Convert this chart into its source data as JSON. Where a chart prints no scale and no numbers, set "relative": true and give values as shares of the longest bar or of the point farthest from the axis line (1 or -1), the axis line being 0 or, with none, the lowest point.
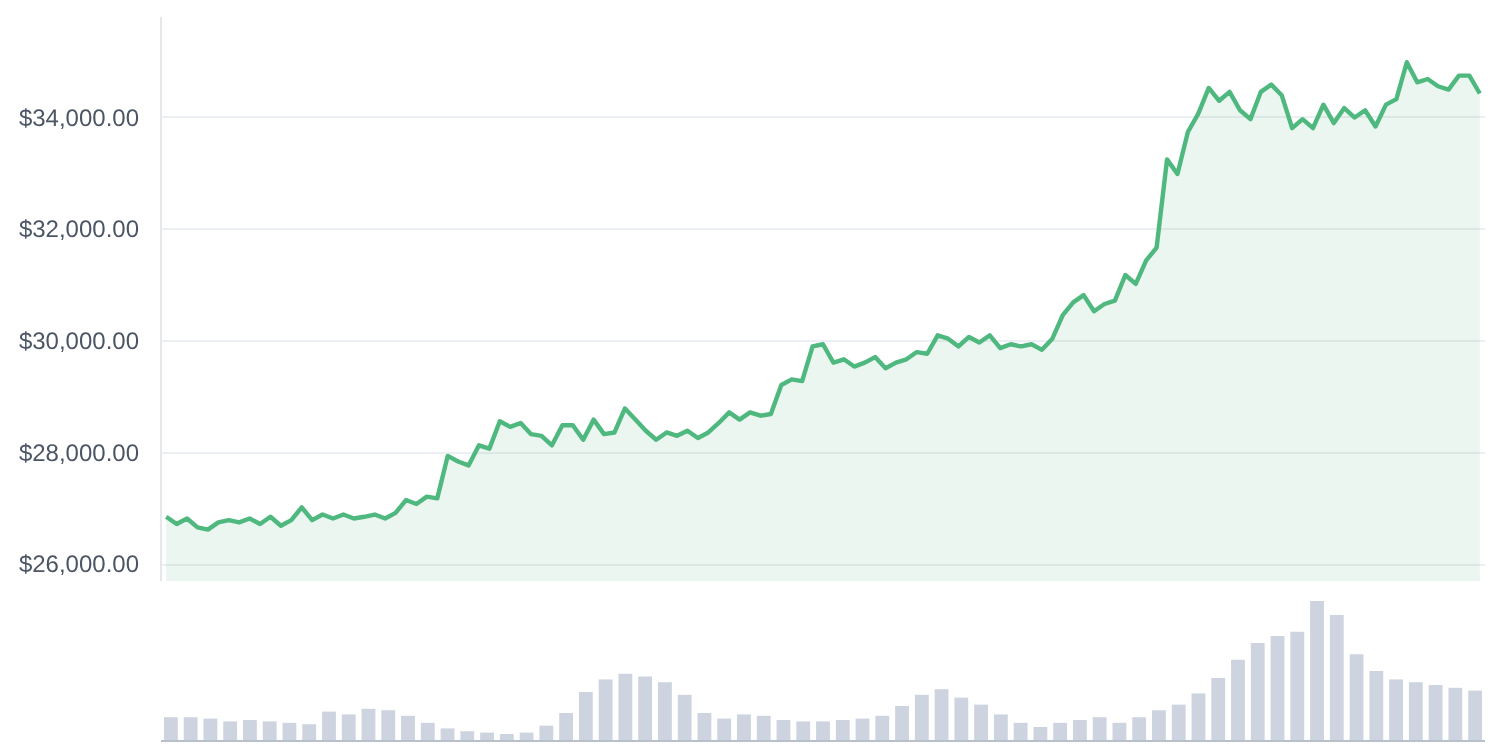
{
  "chart_data": [
    {
      "type": "area",
      "categories": [
        null,
        null,
        null,
        null,
        null,
        null,
        null,
        null,
        null,
        null,
        null,
        null,
        null,
        null,
        null,
        null,
        null,
        null,
        null,
        null,
        null,
        null,
        null,
        null,
        null,
        null,
        null,
        null,
        null,
        null,
        null,
        null,
        null,
        null,
        null,
        null,
        null,
        null,
        null,
        null,
        null,
        null,
        null,
        null,
        null,
        null,
        null,
        null,
        null,
        null,
        null,
        null,
        null,
        null,
        null,
        null,
        null,
        null,
        null,
        null,
        null,
        null,
        null,
        null,
        null,
        null,
        null,
        null,
        null,
        null,
        null,
        null,
        null,
        null,
        null,
        null,
        null,
        null,
        null,
        null,
        null,
        null,
        null,
        null,
        null,
        null,
        null,
        null,
        null,
        null,
        null,
        null,
        null,
        null,
        null,
        null,
        null,
        null,
        null,
        null,
        null,
        null,
        null,
        null,
        null,
        null,
        null,
        null,
        null,
        null,
        null,
        null,
        null,
        null,
        null,
        null,
        null,
        null,
        null,
        null,
        null,
        null,
        null,
        null,
        null,
        null,
        null
      ],
      "series": [
        {
          "color": "#4fb87f",
          "values": [
            26850,
            26720,
            26820,
            26660,
            26620,
            26750,
            26790,
            26750,
            26820,
            26720,
            26850,
            26690,
            26790,
            27020,
            26790,
            26890,
            26820,
            26890,
            26820,
            26850,
            26890,
            26820,
            26920,
            27150,
            27080,
            27210,
            27180,
            27940,
            27840,
            27770,
            28130,
            28070,
            28560,
            28460,
            28530,
            28330,
            28300,
            28130,
            28490,
            28490,
            28230,
            28590,
            28330,
            28360,
            28790,
            28590,
            28390,
            28230,
            28360,
            28300,
            28390,
            28260,
            28360,
            28530,
            28720,
            28590,
            28720,
            28660,
            28690,
            29210,
            29310,
            29280,
            29900,
            29940,
            29610,
            29670,
            29540,
            29610,
            29710,
            29510,
            29610,
            29670,
            29800,
            29770,
            30100,
            30040,
            29900,
            30070,
            29970,
            30100,
            29870,
            29940,
            29900,
            29940,
            29840,
            30040,
            30460,
            30690,
            30820,
            30530,
            30660,
            30720,
            31180,
            31020,
            31440,
            31670,
            33250,
            32990,
            33740,
            34070,
            34530,
            34300,
            34460,
            34130,
            33970,
            34460,
            34590,
            34400,
            33810,
            33970,
            33810,
            34230,
            33900,
            34170,
            34000,
            34130,
            33840,
            34230,
            34330,
            34990,
            34630,
            34690,
            34560,
            34500,
            34750,
            34750,
            34430
          ]
        }
      ],
      "ylim": [
        25700,
        35800
      ],
      "yticks": [
        {
          "value": 26000,
          "label": "$26,000.00"
        },
        {
          "value": 28000,
          "label": "$28,000.00"
        },
        {
          "value": 30000,
          "label": "$30,000.00"
        },
        {
          "value": 32000,
          "label": "$32,000.00"
        },
        {
          "value": 34000,
          "label": "$34,000.00"
        }
      ],
      "grid": "y",
      "tick_labels": "y"
    },
    {
      "type": "bar",
      "relative": true,
      "color": "#cdd4e0",
      "tick_labels": false,
      "categories": [
        null,
        null,
        null,
        null,
        null,
        null,
        null,
        null,
        null,
        null,
        null,
        null,
        null,
        null,
        null,
        null,
        null,
        null,
        null,
        null,
        null,
        null,
        null,
        null,
        null,
        null,
        null,
        null,
        null,
        null,
        null,
        null,
        null,
        null,
        null,
        null,
        null,
        null,
        null,
        null,
        null,
        null,
        null,
        null,
        null,
        null,
        null,
        null,
        null,
        null,
        null,
        null,
        null,
        null,
        null,
        null,
        null,
        null,
        null,
        null,
        null,
        null,
        null,
        null,
        null,
        null,
        null
      ],
      "values": [
        0.17,
        0.17,
        0.16,
        0.14,
        0.15,
        0.14,
        0.13,
        0.12,
        0.21,
        0.19,
        0.23,
        0.22,
        0.18,
        0.13,
        0.09,
        0.07,
        0.06,
        0.05,
        0.06,
        0.11,
        0.2,
        0.35,
        0.44,
        0.48,
        0.46,
        0.42,
        0.33,
        0.2,
        0.16,
        0.19,
        0.18,
        0.15,
        0.14,
        0.14,
        0.15,
        0.16,
        0.18,
        0.25,
        0.33,
        0.37,
        0.31,
        0.26,
        0.19,
        0.13,
        0.1,
        0.13,
        0.15,
        0.17,
        0.13,
        0.17,
        0.22,
        0.26,
        0.34,
        0.45,
        0.58,
        0.7,
        0.75,
        0.78,
        1.0,
        0.9,
        0.62,
        0.5,
        0.44,
        0.42,
        0.4,
        0.38,
        0.36
      ]
    }
  ]
}
